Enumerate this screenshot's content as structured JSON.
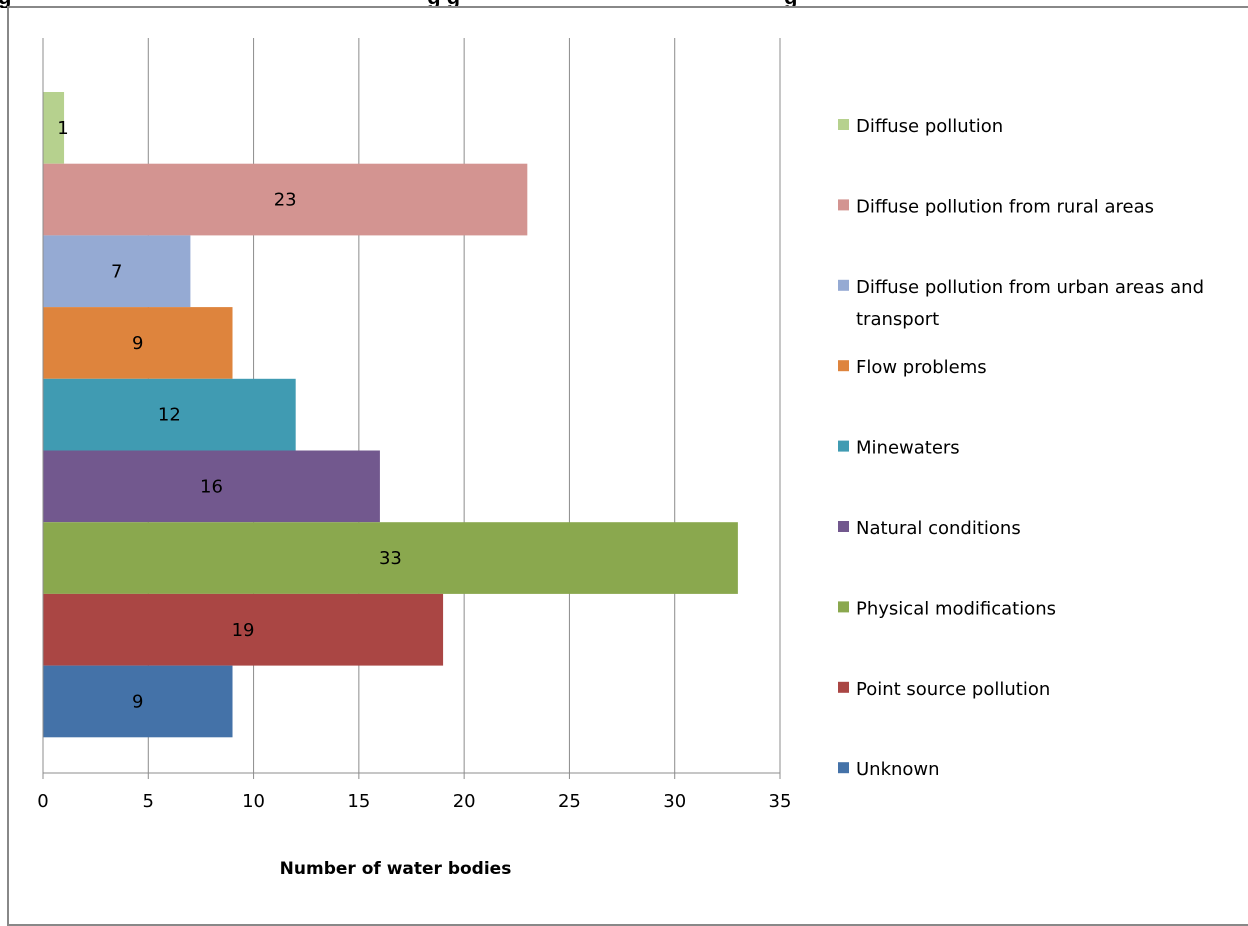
{
  "page": {
    "title_fragment": "g                                                                    g g                                                     g"
  },
  "chart_data": {
    "type": "bar",
    "orientation": "horizontal",
    "title": "",
    "xlabel": "Number of water bodies",
    "ylabel": "",
    "xlim": [
      0,
      35
    ],
    "x_ticks": [
      "0",
      "5",
      "10",
      "15",
      "20",
      "25",
      "30",
      "35"
    ],
    "grid": "vertical",
    "legend_position": "right",
    "series": [
      {
        "name": "Diffuse pollution",
        "value": 1,
        "color": "#B6D18E"
      },
      {
        "name": "Diffuse pollution from rural areas",
        "value": 23,
        "color": "#D39491"
      },
      {
        "name": "Diffuse pollution from urban areas and transport",
        "value": 7,
        "color": "#95AAD3"
      },
      {
        "name": "Flow problems",
        "value": 9,
        "color": "#DE843D"
      },
      {
        "name": "Minewaters",
        "value": 12,
        "color": "#409BB2"
      },
      {
        "name": "Natural conditions",
        "value": 16,
        "color": "#72588E"
      },
      {
        "name": "Physical modifications",
        "value": 33,
        "color": "#8AA84E"
      },
      {
        "name": "Point source pollution",
        "value": 19,
        "color": "#AA4644"
      },
      {
        "name": "Unknown",
        "value": 9,
        "color": "#4472A8"
      }
    ]
  }
}
